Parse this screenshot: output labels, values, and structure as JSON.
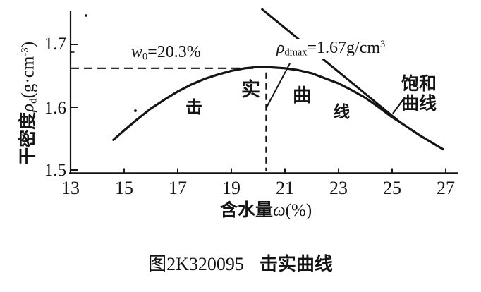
{
  "colors": {
    "ink": "#141414",
    "background": "#ffffff"
  },
  "y_axis": {
    "title_cjk": "干密度",
    "title_symbol": "ρ",
    "title_symbol_sub": "d",
    "title_unit_open": "(g·cm",
    "title_unit_sup": "-3",
    "title_unit_close": ")",
    "tick_labels": [
      "1.7",
      "1.6",
      "1.5"
    ]
  },
  "x_axis": {
    "title_cjk": "含水量",
    "title_symbol": "ω",
    "title_unit": "(%)",
    "tick_labels": [
      "13",
      "15",
      "17",
      "19",
      "21",
      "23",
      "25",
      "27"
    ]
  },
  "annotations": {
    "w0_var": "w",
    "w0_sub": "0",
    "w0_value": "=20.3%",
    "rho_var": "ρ",
    "rho_sub": "dmax",
    "rho_value": "=1.67g/cm",
    "rho_sup": "3",
    "curve_char_1": "击",
    "curve_char_2": "实",
    "curve_char_3": "曲",
    "curve_char_4": "线",
    "saturation_line_label_1": "饱和",
    "saturation_line_label_2": "曲线"
  },
  "caption": {
    "figure_number": "图2K320095",
    "figure_title": "击实曲线"
  },
  "chart_data": {
    "type": "line",
    "title": "图2K320095 击实曲线 (compaction curve)",
    "xlabel": "含水量ω(%)",
    "ylabel": "干密度ρd(g·cm⁻³)",
    "xlim": [
      13,
      27.5
    ],
    "ylim": [
      1.5,
      1.76
    ],
    "x_ticks": [
      13,
      15,
      17,
      19,
      21,
      23,
      25,
      27
    ],
    "y_ticks": [
      1.5,
      1.6,
      1.7
    ],
    "grid": false,
    "legend_position": "none",
    "series": [
      {
        "name": "击实曲线",
        "points": [
          [
            14.6,
            1.548
          ],
          [
            15,
            1.563
          ],
          [
            15.5,
            1.581
          ],
          [
            16,
            1.598
          ],
          [
            16.5,
            1.612
          ],
          [
            17,
            1.625
          ],
          [
            17.5,
            1.636
          ],
          [
            18,
            1.645
          ],
          [
            18.5,
            1.652
          ],
          [
            19,
            1.658
          ],
          [
            19.5,
            1.662
          ],
          [
            20,
            1.664
          ],
          [
            20.3,
            1.664
          ],
          [
            21,
            1.662
          ],
          [
            21.5,
            1.659
          ],
          [
            22,
            1.654
          ],
          [
            22.5,
            1.646
          ],
          [
            23,
            1.638
          ],
          [
            23.5,
            1.627
          ],
          [
            24,
            1.615
          ],
          [
            24.5,
            1.6
          ],
          [
            25,
            1.584
          ],
          [
            25.3,
            1.576
          ],
          [
            26,
            1.556
          ],
          [
            26.9,
            1.533
          ]
        ]
      },
      {
        "name": "饱和曲线",
        "points": [
          [
            20.15,
            1.756
          ],
          [
            25.3,
            1.576
          ]
        ]
      }
    ],
    "annotations": {
      "w0": {
        "label": "w0=20.3%",
        "omega": 20.3
      },
      "rho_dmax": {
        "label": "ρdmax=1.67g/cm³",
        "rho": 1.67
      },
      "drawn_peak": {
        "omega": 20.3,
        "rho": 1.662
      },
      "dash_end_omega": 19.9
    }
  }
}
